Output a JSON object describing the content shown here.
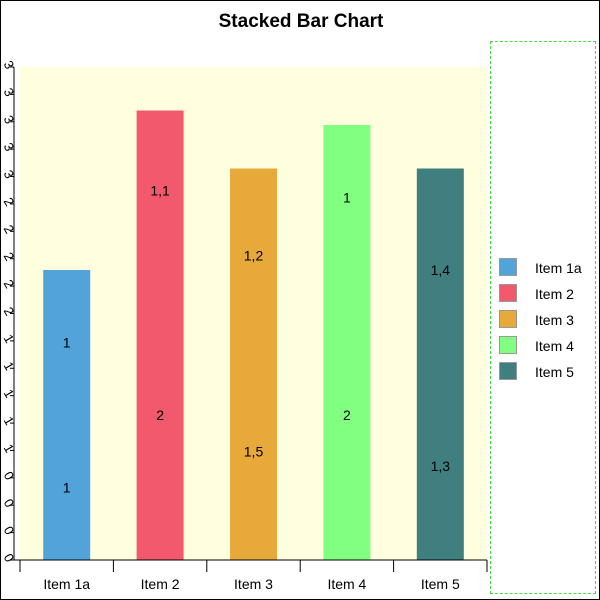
{
  "chart_data": {
    "type": "bar",
    "stacked": true,
    "title": "Stacked Bar Chart",
    "xlabel": "",
    "ylabel": "",
    "categories": [
      "Item 1a",
      "Item 2",
      "Item 3",
      "Item 4",
      "Item 5"
    ],
    "y_tick_labels": [
      "0",
      "0",
      "0",
      "0",
      "1",
      "1",
      "1",
      "1",
      "1",
      "2",
      "2",
      "2",
      "2",
      "2",
      "3",
      "3",
      "3",
      "3",
      "3"
    ],
    "ylim": [
      0,
      3.4
    ],
    "grid": false,
    "legend_position": "right",
    "plot_background": "#ffffe0",
    "bars": [
      {
        "category": "Item 1a",
        "color": "#52a3d9",
        "segments": [
          {
            "value": 1,
            "label": "1"
          },
          {
            "value": 1,
            "label": "1"
          }
        ]
      },
      {
        "category": "Item 2",
        "color": "#f3596c",
        "segments": [
          {
            "value": 2,
            "label": "2"
          },
          {
            "value": 1.1,
            "label": "1,1"
          }
        ]
      },
      {
        "category": "Item 3",
        "color": "#e6a93a",
        "segments": [
          {
            "value": 1.5,
            "label": "1,5"
          },
          {
            "value": 1.2,
            "label": "1,2"
          }
        ]
      },
      {
        "category": "Item 4",
        "color": "#80ff80",
        "segments": [
          {
            "value": 2,
            "label": "2"
          },
          {
            "value": 1,
            "label": "1"
          }
        ]
      },
      {
        "category": "Item 5",
        "color": "#407f7f",
        "segments": [
          {
            "value": 1.3,
            "label": "1,3"
          },
          {
            "value": 1.4,
            "label": "1,4"
          }
        ]
      }
    ],
    "legend": [
      {
        "label": "Item 1a",
        "color": "#52a3d9"
      },
      {
        "label": "Item 2",
        "color": "#f3596c"
      },
      {
        "label": "Item 3",
        "color": "#e6a93a"
      },
      {
        "label": "Item 4",
        "color": "#80ff80"
      },
      {
        "label": "Item 5",
        "color": "#407f7f"
      }
    ]
  }
}
